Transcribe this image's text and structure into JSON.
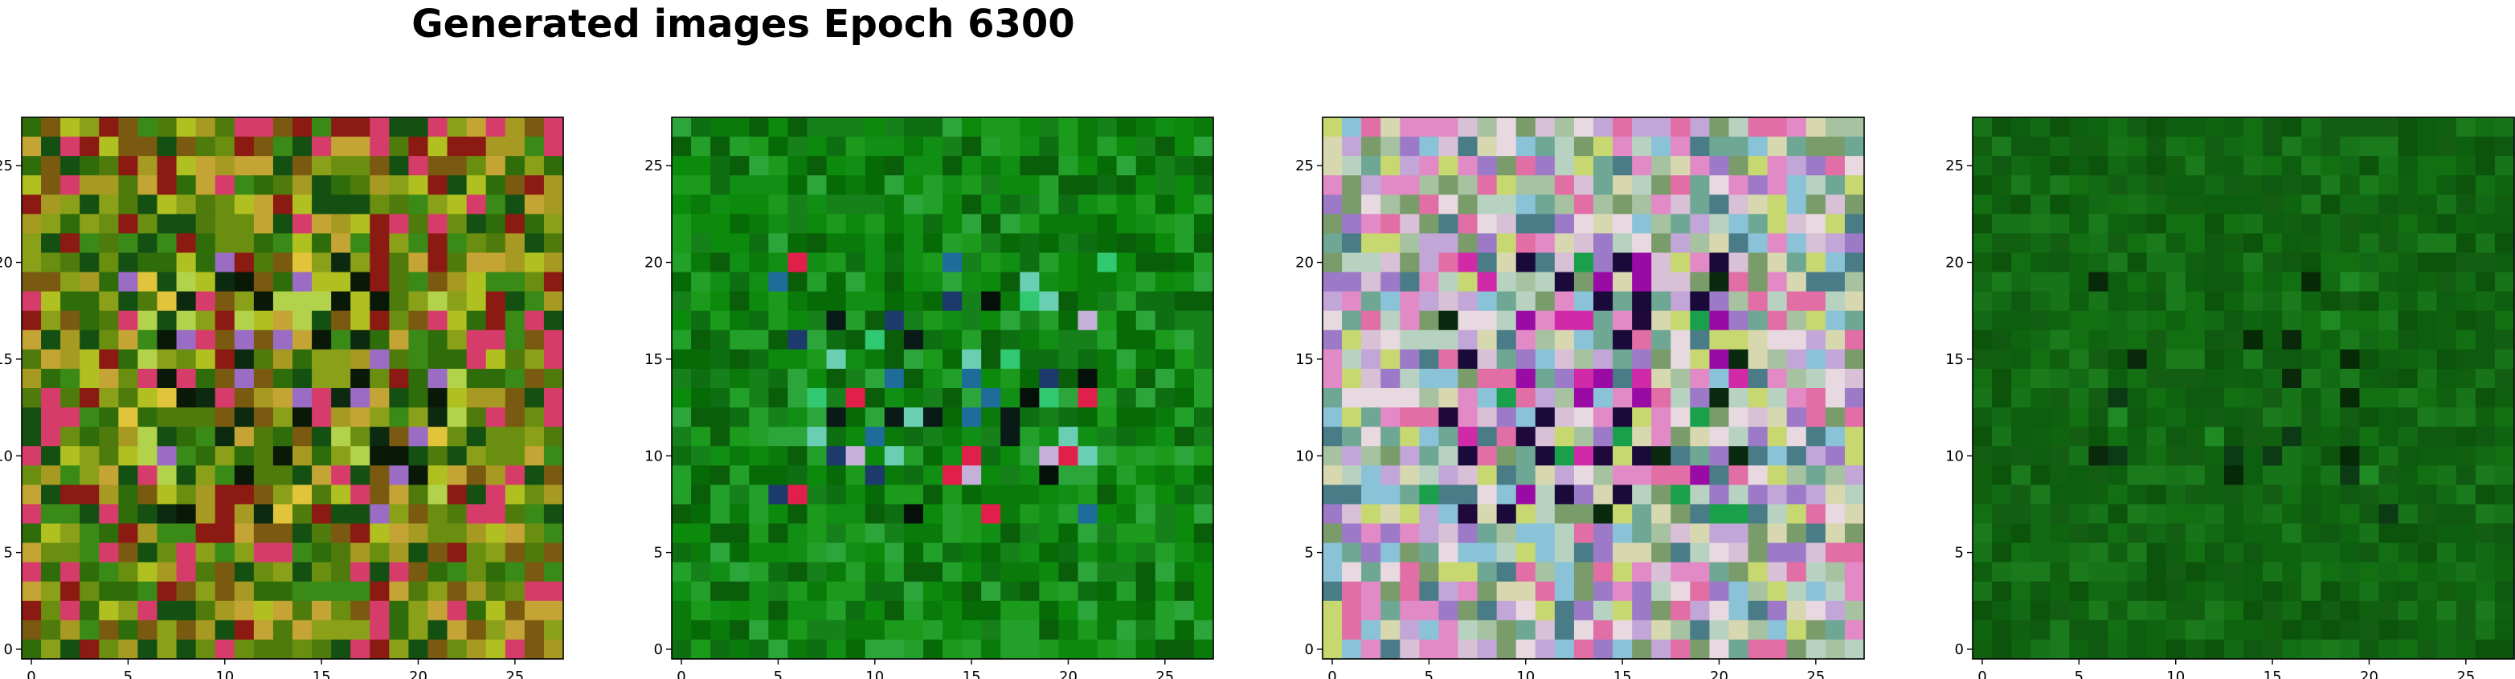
{
  "figure": {
    "title": "Generated images Epoch 6300"
  },
  "chart_data": [
    {
      "type": "heatmap",
      "title": "",
      "xlabel": "",
      "ylabel": "",
      "grid_size": [
        28,
        28
      ],
      "xlim": [
        -0.5,
        27.5
      ],
      "ylim": [
        27.5,
        -0.5
      ],
      "x_ticks": [
        0,
        5,
        10,
        15,
        20,
        25
      ],
      "y_ticks": [
        0,
        5,
        10,
        15,
        20,
        25
      ],
      "grid": false,
      "palette": [
        "#6a8f10",
        "#8aa018",
        "#4f7a0c",
        "#a79a22",
        "#2f6d0a",
        "#c4a434",
        "#7a5a10",
        "#3a8a18",
        "#b0c020",
        "#8b1a12",
        "#d63c6a",
        "#145012"
      ],
      "accent_colors": [
        "#0c2a10",
        "#b2d24c",
        "#e2c43a",
        "#9a6cc4",
        "#0a1808"
      ],
      "accent_cells": 85
    },
    {
      "type": "heatmap",
      "title": "",
      "xlabel": "",
      "ylabel": "",
      "grid_size": [
        28,
        28
      ],
      "xlim": [
        -0.5,
        27.5
      ],
      "ylim": [
        27.5,
        -0.5
      ],
      "x_ticks": [
        0,
        5,
        10,
        15,
        20,
        25
      ],
      "y_ticks": [
        0,
        5,
        10,
        15,
        20,
        25
      ],
      "grid": false,
      "palette": [
        "#0c8a0c",
        "#108f14",
        "#0a7a0a",
        "#1b9a1c",
        "#066b06",
        "#22a02a",
        "#0e6e12",
        "#2ca63a",
        "#0a5e0a",
        "#16801a"
      ],
      "accent_colors": [
        "#0a1a16",
        "#1d3a6c",
        "#e0204a",
        "#6acfb2",
        "#c4b0d8",
        "#30c870",
        "#05100a",
        "#1e6c9a"
      ],
      "accent_cells": 60
    },
    {
      "type": "heatmap",
      "title": "",
      "xlabel": "",
      "ylabel": "",
      "grid_size": [
        28,
        28
      ],
      "xlim": [
        -0.5,
        27.5
      ],
      "ylim": [
        27.5,
        -0.5
      ],
      "x_ticks": [
        0,
        5,
        10,
        15,
        20,
        25
      ],
      "y_ticks": [
        0,
        5,
        10,
        15,
        20,
        25
      ],
      "grid": false,
      "palette": [
        "#c2a6d8",
        "#e28ac6",
        "#9c7ac8",
        "#d8c0d6",
        "#b8d2c2",
        "#6ea894",
        "#d8d8b0",
        "#a6c2a0",
        "#c8d870",
        "#8ac2d8",
        "#e26ea6",
        "#7a9c6a",
        "#e8d8e0",
        "#4a7c88"
      ],
      "accent_colors": [
        "#20083a",
        "#9a0aa4",
        "#1a0a3a",
        "#d02aa8",
        "#0a2a10",
        "#1aa04a"
      ],
      "accent_cells": 70
    },
    {
      "type": "heatmap",
      "title": "",
      "xlabel": "",
      "ylabel": "",
      "grid_size": [
        28,
        28
      ],
      "xlim": [
        -0.5,
        27.5
      ],
      "ylim": [
        27.5,
        -0.5
      ],
      "x_ticks": [
        0,
        5,
        10,
        15,
        20,
        25
      ],
      "y_ticks": [
        0,
        5,
        10,
        15,
        20,
        25
      ],
      "grid": false,
      "palette": [
        "#106010",
        "#145e14",
        "#0f5a10",
        "#127012",
        "#0d5e0e",
        "#177419",
        "#0c540c",
        "#1a7a1c",
        "#136a14",
        "#0f6410"
      ],
      "accent_colors": [
        "#0a280a",
        "#062a06",
        "#0c3a14",
        "#1f8a24"
      ],
      "accent_cells": 24
    }
  ]
}
